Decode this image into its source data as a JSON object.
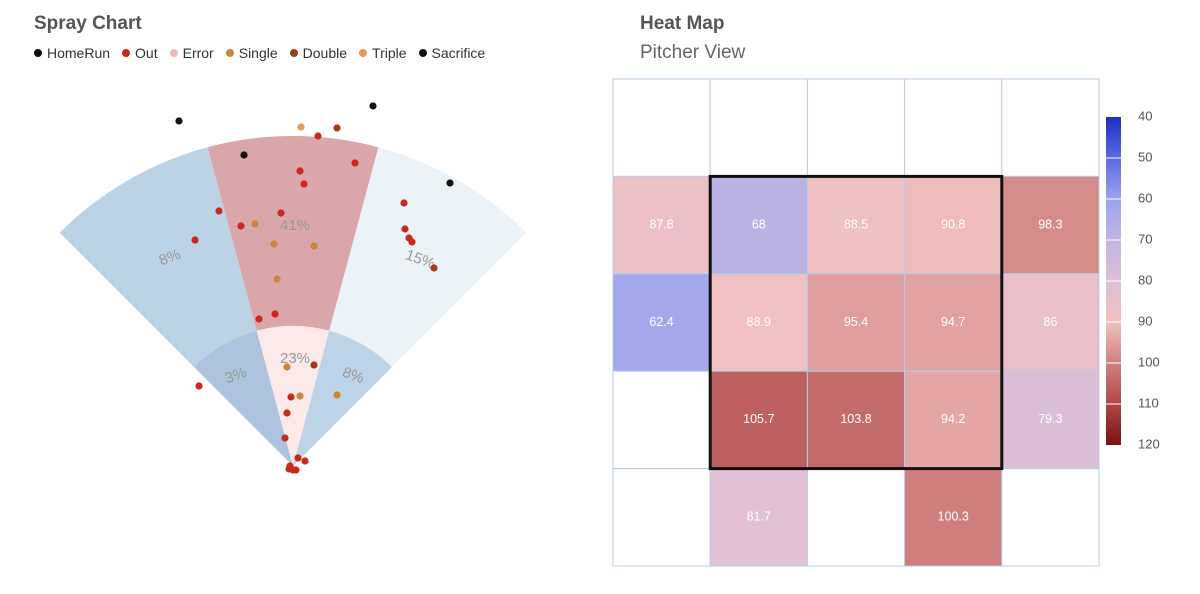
{
  "spray": {
    "title": "Spray Chart",
    "legend": [
      {
        "label": "HomeRun",
        "color": "#111111"
      },
      {
        "label": "Out",
        "color": "#c8281e"
      },
      {
        "label": "Error",
        "color": "#f0b8b8"
      },
      {
        "label": "Single",
        "color": "#c8883c"
      },
      {
        "label": "Double",
        "color": "#a03c1e"
      },
      {
        "label": "Triple",
        "color": "#f0965a"
      },
      {
        "label": "Sacrifice",
        "color": "#111111"
      }
    ],
    "zones": [
      {
        "zone": "outfield-left",
        "label": "8%",
        "color": "#bcd3e6"
      },
      {
        "zone": "outfield-center",
        "label": "41%",
        "color": "#d9a6aa"
      },
      {
        "zone": "outfield-right",
        "label": "15%",
        "color": "#ebf2f8"
      },
      {
        "zone": "infield-left",
        "label": "3%",
        "color": "#aec3de"
      },
      {
        "zone": "infield-center",
        "label": "23%",
        "color": "#fbeae7"
      },
      {
        "zone": "infield-right",
        "label": "8%",
        "color": "#bdd4e8"
      }
    ]
  },
  "chart_data": [
    {
      "type": "scatter",
      "title": "Spray Chart",
      "series": [
        {
          "name": "HomeRun",
          "points": [
            [
              179,
              121
            ],
            [
              373,
              106
            ],
            [
              244,
              155
            ],
            [
              450,
              183
            ]
          ]
        },
        {
          "name": "Out",
          "points": [
            [
              318,
              136
            ],
            [
              355,
              163
            ],
            [
              300,
              171
            ],
            [
              304,
              184
            ],
            [
              219,
              211
            ],
            [
              281,
              213
            ],
            [
              241,
              226
            ],
            [
              195,
              240
            ],
            [
              404,
              203
            ],
            [
              405,
              229
            ],
            [
              409,
              238
            ],
            [
              412,
              242
            ],
            [
              275,
              314
            ],
            [
              259,
              319
            ],
            [
              199,
              386
            ],
            [
              291,
              397
            ],
            [
              287,
              413
            ],
            [
              285,
              438
            ],
            [
              298,
              458
            ],
            [
              305,
              461
            ],
            [
              290,
              466
            ],
            [
              293,
              470
            ],
            [
              296,
              470
            ],
            [
              289,
              469
            ]
          ]
        },
        {
          "name": "Single",
          "points": [
            [
              255,
              224
            ],
            [
              274,
              244
            ],
            [
              314,
              246
            ],
            [
              277,
              279
            ],
            [
              287,
              367
            ],
            [
              300,
              396
            ],
            [
              337,
              395
            ]
          ]
        },
        {
          "name": "Double",
          "points": [
            [
              337,
              128
            ],
            [
              314,
              365
            ],
            [
              434,
              268
            ]
          ]
        },
        {
          "name": "Triple",
          "points": [
            [
              301,
              127
            ]
          ]
        }
      ]
    },
    {
      "type": "heatmap",
      "title": "Heat Map",
      "subtitle": "Pitcher View",
      "rows": 5,
      "cols": 5,
      "values": [
        [
          null,
          null,
          null,
          null,
          null
        ],
        [
          87.8,
          68,
          88.5,
          90.8,
          98.3
        ],
        [
          62.4,
          88.9,
          95.4,
          94.7,
          86
        ],
        [
          null,
          105.7,
          103.8,
          94.2,
          79.3
        ],
        [
          null,
          81.7,
          null,
          100.3,
          null
        ]
      ],
      "value_labels": [
        [
          "",
          "",
          "",
          "",
          ""
        ],
        [
          "87.8",
          "68",
          "88.5",
          "90.8",
          "98.3"
        ],
        [
          "62.4",
          "88.9",
          "95.4",
          "94.7",
          "86"
        ],
        [
          "",
          "105.7",
          "103.8",
          "94.2",
          "79.3"
        ],
        [
          "",
          "81.7",
          "",
          "100.3",
          ""
        ]
      ],
      "strike_zone": {
        "rows": [
          1,
          3
        ],
        "cols": [
          1,
          3
        ]
      },
      "colorbar": {
        "ticks": [
          "40",
          "50",
          "60",
          "70",
          "80",
          "90",
          "100",
          "110",
          "120"
        ],
        "range": [
          40,
          120
        ],
        "colors": [
          "#1a2fc0",
          "#5a6ae0",
          "#9ca3ee",
          "#c2b4e2",
          "#dcc0d6",
          "#f2c0c0",
          "#d08080",
          "#b04848",
          "#7a1010"
        ]
      }
    }
  ],
  "heatmap": {
    "title": "Heat Map",
    "subtitle": "Pitcher View"
  }
}
